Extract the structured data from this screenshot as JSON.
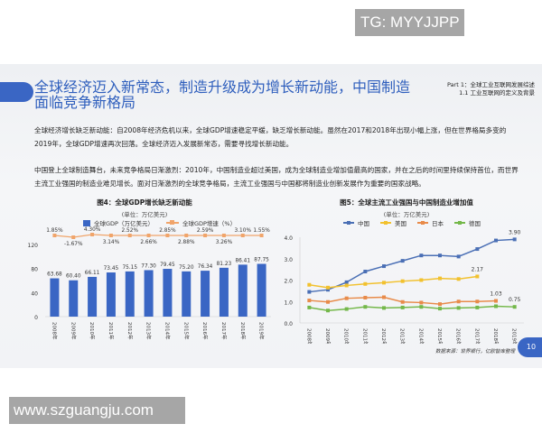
{
  "watermarks": {
    "top": "TG: MYYJJPP",
    "bottom": "www.szguangju.com"
  },
  "slide": {
    "title": "全球经济迈入新常态，制造升级成为增长新动能，中国制造面临竞争新格局",
    "part_line1": "Part 1：全球工业互联网发展综述",
    "part_line2": "1.1 工业互联网的定义及背景",
    "paragraph1": "全球经济增长缺乏新动能：自2008年经济危机以来，全球GDP增速稳定平缓，缺乏增长新动能。虽然在2017和2018年出现小幅上涨，但在世界格局多变的2019年，全球GDP增速再次回落。全球经济迈入发展新常态，需要寻找增长新动能。",
    "paragraph2": "中国登上全球制造舞台，未来竞争格局日渐激烈：2010年，中国制造业超过美国，成为全球制造业增加值最高的国家，并在之后的时间里持续保持首位，而世界主流工业强国的制造业难见增长。面对日渐激烈的全球竞争格局，主流工业强国与中国都将制造业创新发展作为重要的国家战略。",
    "source": "数据来源：世界银行，亿欧智库整理",
    "page_number": "10"
  },
  "colors": {
    "accent": "#3a66c4",
    "bar": "#3a66c4",
    "gdp_growth": "#f0a46a",
    "china": "#4a6fb5",
    "usa": "#f2c12e",
    "japan": "#e88b4a",
    "germany": "#74b84a"
  },
  "chart_data": [
    {
      "type": "bar",
      "title": "图4：全球GDP增长缺乏新动能",
      "subtitle": "(单位：万亿美元)",
      "categories": [
        "2008年",
        "2009年",
        "2010年",
        "2011年",
        "2012年",
        "2013年",
        "2014年",
        "2015年",
        "2016年",
        "2017年",
        "2018年",
        "2019年"
      ],
      "series": [
        {
          "name": "全球GDP（万亿美元）",
          "type": "bar",
          "values": [
            63.68,
            60.4,
            66.11,
            73.45,
            75.15,
            77.3,
            79.45,
            75.2,
            76.34,
            81.23,
            86.41,
            87.75
          ]
        },
        {
          "name": "全球GDP增速（%）",
          "type": "line",
          "values": [
            "1.85%",
            "-1.67%",
            "4.30%",
            "3.14%",
            "2.52%",
            "2.66%",
            "2.85%",
            "2.88%",
            "2.59%",
            "3.26%",
            "3.10%",
            "1.55%"
          ]
        }
      ],
      "yticks": [
        "0",
        "40",
        "80",
        "120"
      ],
      "ylim": [
        0,
        120
      ]
    },
    {
      "type": "line",
      "title": "图5：全球主流工业强国与中国制造业增加值",
      "subtitle": "(单位：万亿美元)",
      "categories": [
        "2008年",
        "2009年",
        "2010年",
        "2011年",
        "2012年",
        "2013年",
        "2014年",
        "2015年",
        "2016年",
        "2017年",
        "2018年",
        "2019年"
      ],
      "series": [
        {
          "name": "中国",
          "values": [
            1.45,
            1.55,
            1.9,
            2.4,
            2.65,
            2.9,
            3.15,
            3.15,
            3.1,
            3.45,
            3.85,
            3.9
          ]
        },
        {
          "name": "美国",
          "values": [
            1.78,
            1.65,
            1.75,
            1.82,
            1.88,
            1.95,
            2.0,
            2.08,
            2.05,
            2.17,
            null,
            null
          ]
        },
        {
          "name": "日本",
          "values": [
            1.05,
            0.98,
            1.15,
            1.18,
            1.2,
            0.98,
            0.95,
            0.88,
            1.0,
            1.0,
            1.03,
            null
          ]
        },
        {
          "name": "德国",
          "values": [
            0.72,
            0.58,
            0.65,
            0.75,
            0.7,
            0.72,
            0.75,
            0.67,
            0.7,
            0.72,
            0.78,
            0.75
          ]
        }
      ],
      "labels": {
        "china_last": "3.90",
        "usa_last": "2.17",
        "japan_last": "1.03",
        "germany_last": "0.75"
      },
      "yticks": [
        "0.0",
        "1.0",
        "2.0",
        "3.0",
        "4.0"
      ],
      "ylim": [
        0,
        4
      ]
    }
  ]
}
